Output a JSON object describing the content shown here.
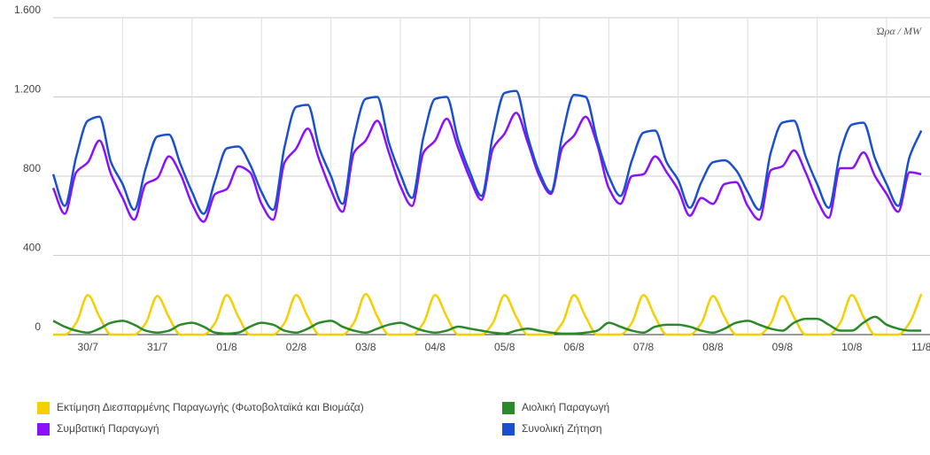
{
  "chart_data": {
    "type": "line",
    "annotation": "Ώρα / MW",
    "x": [
      0,
      4,
      8,
      12,
      16,
      20,
      24,
      28,
      32,
      36,
      40,
      44,
      48,
      52,
      56,
      60,
      64,
      68,
      72,
      76,
      80,
      84,
      88,
      92,
      96,
      100,
      104,
      108,
      112,
      116,
      120,
      124,
      128,
      132,
      136,
      140,
      144,
      148,
      152,
      156,
      160,
      164,
      168,
      172,
      176,
      180,
      184,
      188,
      192,
      196,
      200,
      204,
      208,
      212,
      216,
      220,
      224,
      228,
      232,
      236,
      240,
      244,
      248,
      252,
      256,
      260,
      264,
      268,
      272,
      276,
      280,
      284,
      288,
      292,
      296,
      300
    ],
    "series": [
      {
        "name": "Εκτίμηση Διεσπαρμένης Παραγωγής (Φωτοβολταϊκά και Βιομάζα)",
        "color": "#f5d000",
        "values": [
          0,
          0,
          60,
          200,
          90,
          0,
          0,
          0,
          58,
          195,
          88,
          0,
          0,
          0,
          60,
          200,
          90,
          0,
          0,
          0,
          60,
          200,
          90,
          0,
          0,
          0,
          62,
          205,
          92,
          0,
          0,
          0,
          60,
          200,
          90,
          0,
          0,
          0,
          60,
          200,
          90,
          0,
          0,
          0,
          60,
          200,
          90,
          0,
          0,
          0,
          60,
          200,
          90,
          0,
          0,
          0,
          58,
          195,
          88,
          0,
          0,
          0,
          58,
          195,
          88,
          0,
          0,
          0,
          60,
          200,
          90,
          0,
          0,
          0,
          62,
          205
        ]
      },
      {
        "name": "Αιολική Παραγωγή",
        "color": "#2a8a2a",
        "values": [
          70,
          40,
          20,
          10,
          30,
          60,
          70,
          50,
          20,
          10,
          20,
          50,
          60,
          40,
          10,
          5,
          10,
          40,
          60,
          50,
          20,
          10,
          30,
          60,
          70,
          40,
          20,
          10,
          30,
          50,
          60,
          40,
          20,
          10,
          20,
          40,
          30,
          20,
          10,
          5,
          20,
          30,
          20,
          10,
          5,
          5,
          10,
          20,
          60,
          40,
          20,
          10,
          40,
          50,
          50,
          40,
          20,
          10,
          30,
          60,
          70,
          50,
          30,
          20,
          60,
          80,
          80,
          50,
          20,
          20,
          60,
          90,
          50,
          30,
          20,
          20
        ]
      },
      {
        "name": "Συμβατική Παραγωγή",
        "color": "#8a10ff",
        "values": [
          740,
          610,
          820,
          870,
          980,
          810,
          690,
          580,
          760,
          790,
          900,
          810,
          660,
          570,
          710,
          735,
          850,
          820,
          660,
          580,
          870,
          940,
          1040,
          880,
          730,
          620,
          920,
          980,
          1080,
          920,
          750,
          650,
          920,
          980,
          1090,
          940,
          790,
          680,
          940,
          1015,
          1120,
          970,
          800,
          710,
          945,
          1005,
          1100,
          960,
          740,
          660,
          800,
          810,
          900,
          820,
          730,
          600,
          690,
          660,
          760,
          770,
          650,
          580,
          830,
          850,
          930,
          820,
          680,
          590,
          840,
          840,
          920,
          800,
          710,
          620,
          820,
          810
        ]
      },
      {
        "name": "Συνολική Ζήτηση",
        "color": "#1a50d0",
        "values": [
          810,
          650,
          900,
          1080,
          1100,
          870,
          760,
          630,
          840,
          1000,
          1010,
          860,
          720,
          610,
          780,
          940,
          950,
          860,
          720,
          630,
          950,
          1150,
          1160,
          940,
          800,
          660,
          1000,
          1190,
          1200,
          970,
          810,
          690,
          1000,
          1190,
          1200,
          980,
          820,
          700,
          1010,
          1220,
          1230,
          1000,
          820,
          720,
          1010,
          1210,
          1200,
          980,
          800,
          700,
          880,
          1020,
          1030,
          870,
          780,
          640,
          770,
          870,
          880,
          830,
          720,
          630,
          920,
          1070,
          1080,
          900,
          760,
          640,
          920,
          1060,
          1070,
          890,
          760,
          650,
          900,
          1030
        ]
      }
    ],
    "xlim": [
      0,
      303
    ],
    "xticks": [
      {
        "value": 12,
        "label": "30/7"
      },
      {
        "value": 36,
        "label": "31/7"
      },
      {
        "value": 60,
        "label": "01/8"
      },
      {
        "value": 84,
        "label": "02/8"
      },
      {
        "value": 108,
        "label": "03/8"
      },
      {
        "value": 132,
        "label": "04/8"
      },
      {
        "value": 156,
        "label": "05/8"
      },
      {
        "value": 180,
        "label": "06/8"
      },
      {
        "value": 204,
        "label": "07/8"
      },
      {
        "value": 228,
        "label": "08/8"
      },
      {
        "value": 252,
        "label": "09/8"
      },
      {
        "value": 276,
        "label": "10/8"
      },
      {
        "value": 300,
        "label": "11/8"
      }
    ],
    "ylim": [
      0,
      1600
    ],
    "yticks": [
      0,
      400,
      800,
      {
        "value": 1200,
        "label": "1.200"
      },
      {
        "value": 1600,
        "label": "1.600"
      }
    ],
    "grid": true
  }
}
